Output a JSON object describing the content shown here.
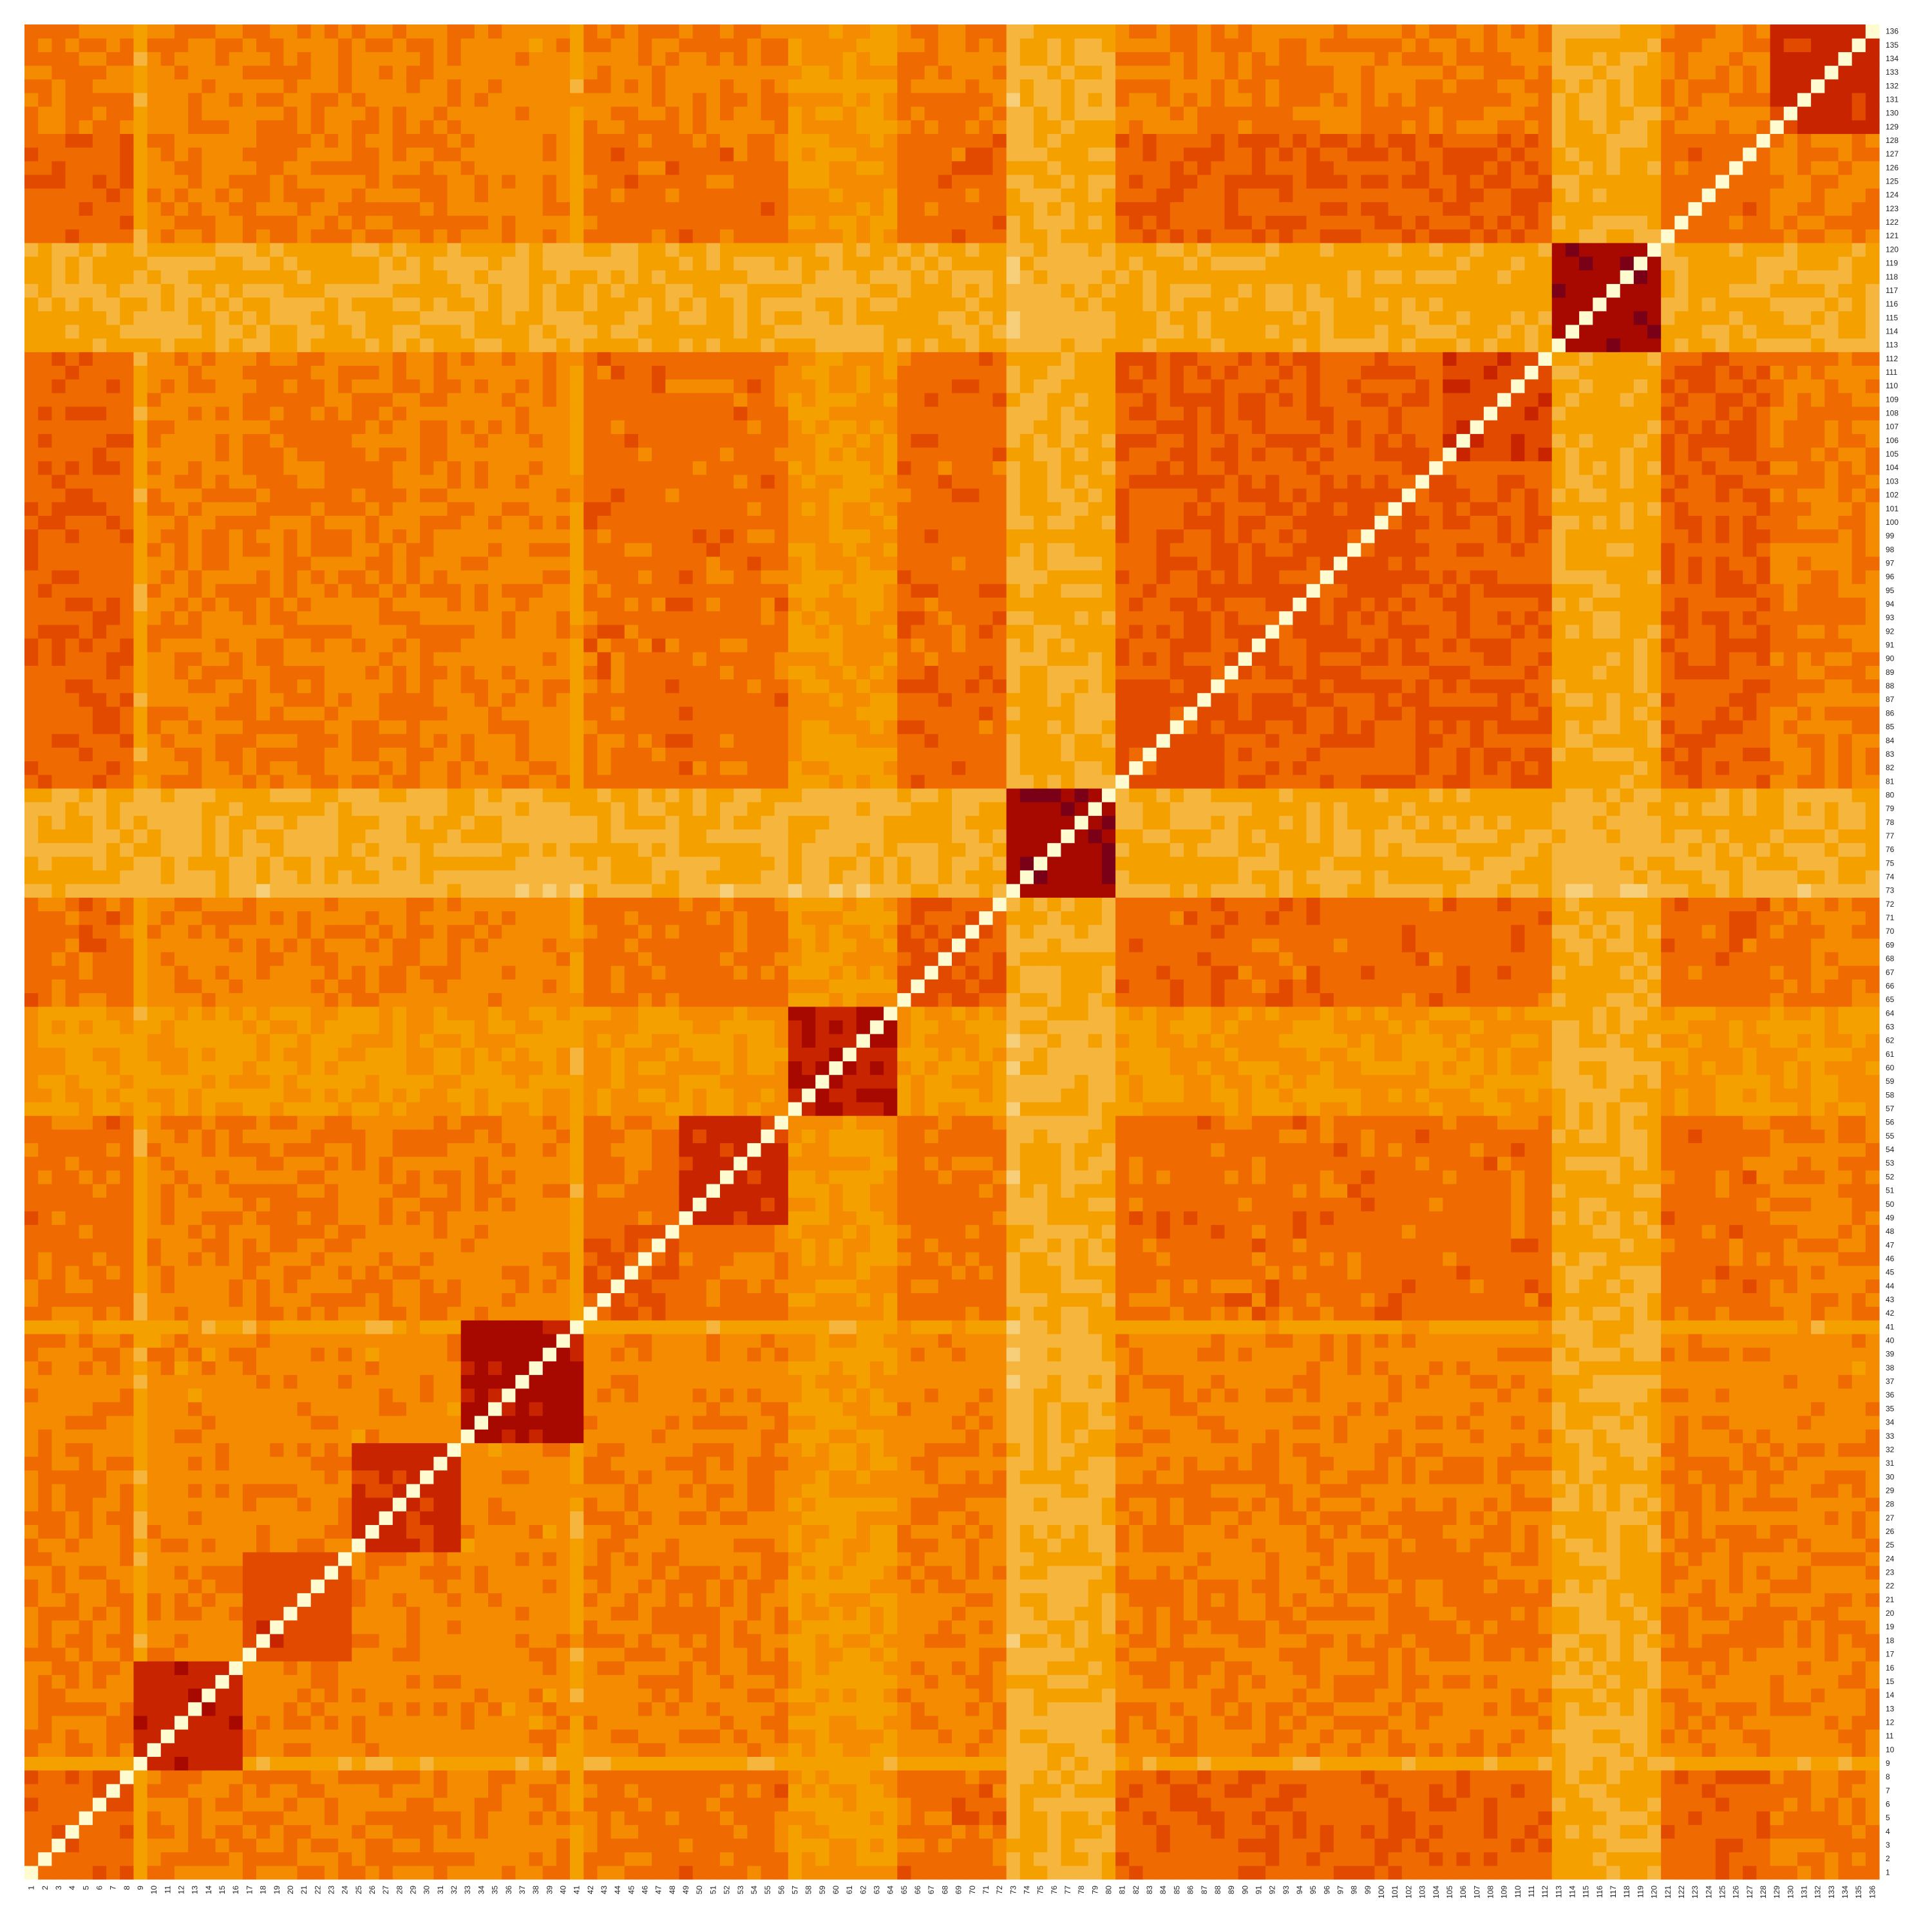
{
  "chart_data": {
    "type": "heatmap",
    "title": "",
    "xlabel": "",
    "ylabel": "",
    "n": 136,
    "x_tick_labels": [
      "1",
      "2",
      "3",
      "4",
      "5",
      "6",
      "7",
      "8",
      "9",
      "10",
      "11",
      "12",
      "13",
      "14",
      "15",
      "16",
      "17",
      "18",
      "19",
      "20",
      "21",
      "22",
      "23",
      "24",
      "25",
      "26",
      "27",
      "28",
      "29",
      "30",
      "31",
      "32",
      "33",
      "34",
      "35",
      "36",
      "37",
      "38",
      "39",
      "40",
      "41",
      "42",
      "43",
      "44",
      "45",
      "46",
      "47",
      "48",
      "49",
      "50",
      "51",
      "52",
      "53",
      "54",
      "55",
      "56",
      "57",
      "58",
      "59",
      "60",
      "61",
      "62",
      "63",
      "64",
      "65",
      "66",
      "67",
      "68",
      "69",
      "70",
      "71",
      "72",
      "73",
      "74",
      "75",
      "76",
      "77",
      "78",
      "79",
      "80",
      "81",
      "82",
      "83",
      "84",
      "85",
      "86",
      "87",
      "88",
      "89",
      "90",
      "91",
      "92",
      "93",
      "94",
      "95",
      "96",
      "97",
      "98",
      "99",
      "100",
      "101",
      "102",
      "103",
      "104",
      "105",
      "106",
      "107",
      "108",
      "109",
      "110",
      "111",
      "112",
      "113",
      "114",
      "115",
      "116",
      "117",
      "118",
      "119",
      "120",
      "121",
      "122",
      "123",
      "124",
      "125",
      "126",
      "127",
      "128",
      "129",
      "130",
      "131",
      "132",
      "133",
      "134",
      "135",
      "136"
    ],
    "y_tick_labels": [
      "1",
      "2",
      "3",
      "4",
      "5",
      "6",
      "7",
      "8",
      "9",
      "10",
      "11",
      "12",
      "13",
      "14",
      "15",
      "16",
      "17",
      "18",
      "19",
      "20",
      "21",
      "22",
      "23",
      "24",
      "25",
      "26",
      "27",
      "28",
      "29",
      "30",
      "31",
      "32",
      "33",
      "34",
      "35",
      "36",
      "37",
      "38",
      "39",
      "40",
      "41",
      "42",
      "43",
      "44",
      "45",
      "46",
      "47",
      "48",
      "49",
      "50",
      "51",
      "52",
      "53",
      "54",
      "55",
      "56",
      "57",
      "58",
      "59",
      "60",
      "61",
      "62",
      "63",
      "64",
      "65",
      "66",
      "67",
      "68",
      "69",
      "70",
      "71",
      "72",
      "73",
      "74",
      "75",
      "76",
      "77",
      "78",
      "79",
      "80",
      "81",
      "82",
      "83",
      "84",
      "85",
      "86",
      "87",
      "88",
      "89",
      "90",
      "91",
      "92",
      "93",
      "94",
      "95",
      "96",
      "97",
      "98",
      "99",
      "100",
      "101",
      "102",
      "103",
      "104",
      "105",
      "106",
      "107",
      "108",
      "109",
      "110",
      "111",
      "112",
      "113",
      "114",
      "115",
      "116",
      "117",
      "118",
      "119",
      "120",
      "121",
      "122",
      "123",
      "124",
      "125",
      "126",
      "127",
      "128",
      "129",
      "130",
      "131",
      "132",
      "133",
      "134",
      "135",
      "136"
    ],
    "y_order": "bottom-to-top",
    "diagonal_value": 1.0,
    "value_range": [
      0,
      1
    ],
    "colormap": [
      "#fffbd1",
      "#f7cf7b",
      "#f6b53c",
      "#f4a100",
      "#f48b00",
      "#ef6a00",
      "#e24a00",
      "#c92400",
      "#a70800",
      "#7a0018"
    ],
    "legend": "none",
    "grid": false,
    "clusters": [
      {
        "rows": [
          9,
          16
        ],
        "level": 0.78
      },
      {
        "rows": [
          17,
          24
        ],
        "level": 0.62
      },
      {
        "rows": [
          25,
          32
        ],
        "level": 0.72
      },
      {
        "rows": [
          33,
          41
        ],
        "level": 0.86
      },
      {
        "rows": [
          42,
          48
        ],
        "level": 0.58
      },
      {
        "rows": [
          49,
          56
        ],
        "level": 0.74
      },
      {
        "rows": [
          57,
          64
        ],
        "level": 0.8
      },
      {
        "rows": [
          65,
          72
        ],
        "level": 0.58
      },
      {
        "rows": [
          73,
          80
        ],
        "level": 0.92
      },
      {
        "rows": [
          81,
          88
        ],
        "level": 0.62
      },
      {
        "rows": [
          89,
          97
        ],
        "level": 0.56
      },
      {
        "rows": [
          98,
          104
        ],
        "level": 0.58
      },
      {
        "rows": [
          105,
          112
        ],
        "level": 0.66
      },
      {
        "rows": [
          113,
          120
        ],
        "level": 0.9
      },
      {
        "rows": [
          121,
          128
        ],
        "level": 0.5
      },
      {
        "rows": [
          129,
          136
        ],
        "level": 0.74
      }
    ],
    "row_profiles": [
      {
        "rows": [
          1,
          8
        ],
        "level": 0.52
      },
      {
        "rows": [
          9,
          9
        ],
        "level": 0.18
      },
      {
        "rows": [
          10,
          16
        ],
        "level": 0.4
      },
      {
        "rows": [
          17,
          32
        ],
        "level": 0.42
      },
      {
        "rows": [
          33,
          40
        ],
        "level": 0.38
      },
      {
        "rows": [
          41,
          41
        ],
        "level": 0.22
      },
      {
        "rows": [
          42,
          56
        ],
        "level": 0.48
      },
      {
        "rows": [
          57,
          64
        ],
        "level": 0.28
      },
      {
        "rows": [
          65,
          72
        ],
        "level": 0.5
      },
      {
        "rows": [
          73,
          73
        ],
        "level": 0.08
      },
      {
        "rows": [
          74,
          80
        ],
        "level": 0.14
      },
      {
        "rows": [
          81,
          112
        ],
        "level": 0.56
      },
      {
        "rows": [
          113,
          120
        ],
        "level": 0.16
      },
      {
        "rows": [
          121,
          128
        ],
        "level": 0.56
      },
      {
        "rows": [
          129,
          136
        ],
        "level": 0.42
      }
    ],
    "noise_seed": 136
  }
}
